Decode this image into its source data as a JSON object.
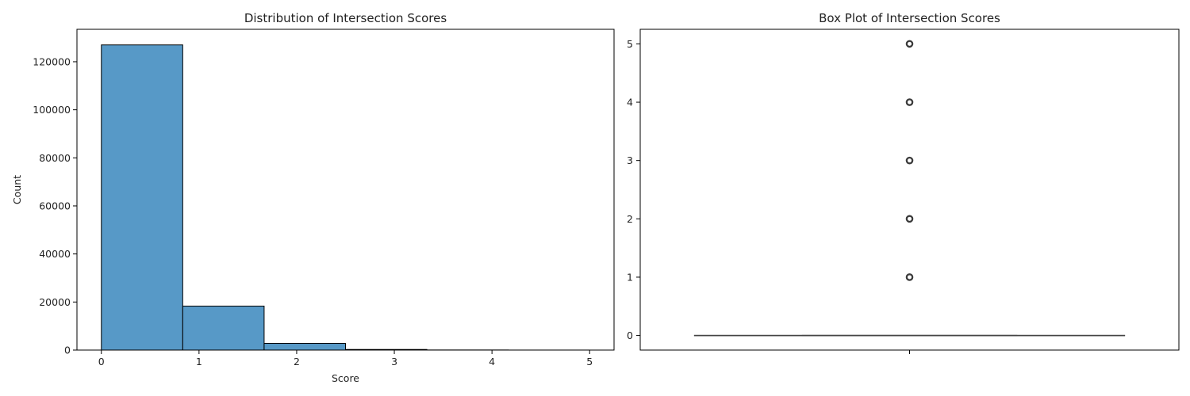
{
  "chart_data": [
    {
      "type": "bar",
      "title": "Distribution of Intersection Scores",
      "xlabel": "Score",
      "ylabel": "Count",
      "bin_edges": [
        0,
        0.8333,
        1.6667,
        2.5,
        3.3333,
        4.1667,
        5
      ],
      "values": [
        127000,
        18300,
        2800,
        250,
        40,
        10
      ],
      "xlim": [
        -0.25,
        5.25
      ],
      "ylim": [
        0,
        133500
      ],
      "xticks": [
        0,
        1,
        2,
        3,
        4,
        5
      ],
      "xtick_labels": [
        "0",
        "1",
        "2",
        "3",
        "4",
        "5"
      ],
      "yticks": [
        0,
        20000,
        40000,
        60000,
        80000,
        100000,
        120000
      ],
      "ytick_labels": [
        "0",
        "20000",
        "40000",
        "60000",
        "80000",
        "100000",
        "120000"
      ],
      "bar_color": "#5799c7",
      "edge_color": "#000000",
      "grid": false
    },
    {
      "type": "box",
      "title": "Box Plot of Intersection Scores",
      "ylim": [
        -0.25,
        5.25
      ],
      "yticks": [
        0,
        1,
        2,
        3,
        4,
        5
      ],
      "ytick_labels": [
        "0",
        "1",
        "2",
        "3",
        "4",
        "5"
      ],
      "box": {
        "min": 0,
        "q1": 0,
        "median": 0,
        "q3": 0,
        "max": 0
      },
      "outliers": [
        1,
        2,
        3,
        4,
        5
      ],
      "box_color": "#444444",
      "grid": false
    }
  ]
}
